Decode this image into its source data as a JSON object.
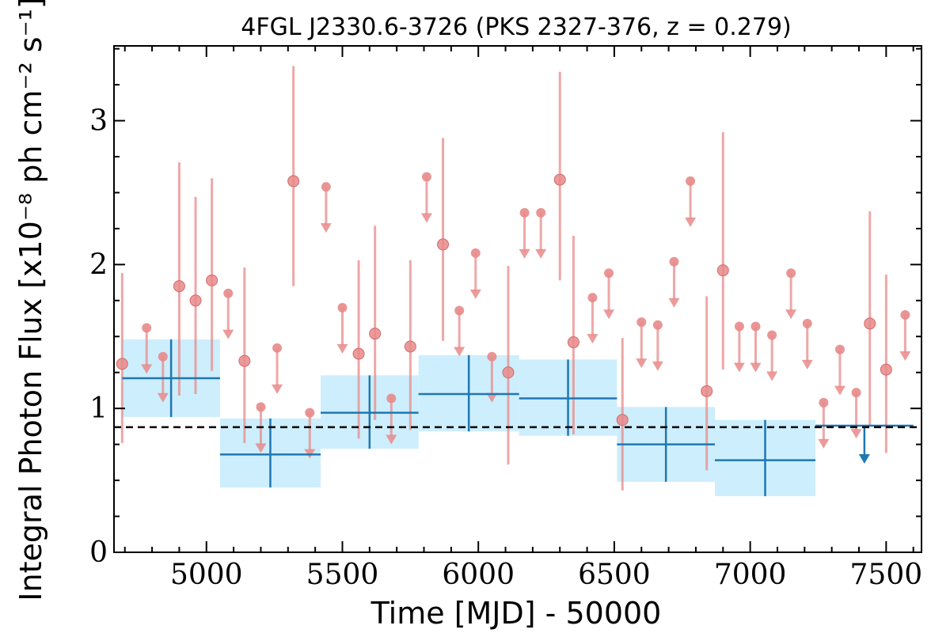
{
  "chart_data": {
    "type": "scatter",
    "title": "4FGL J2330.6-3726 (PKS 2327-376, z = 0.279)",
    "xlabel": "Time [MJD] - 50000",
    "ylabel": "Integral Photon Flux [x10⁻⁸ ph cm⁻² s⁻¹]",
    "xlim": [
      4660,
      7630
    ],
    "ylim": [
      0,
      3.52
    ],
    "xticks": [
      5000,
      5500,
      6000,
      6500,
      7000,
      7500
    ],
    "yticks": [
      0,
      1,
      2,
      3
    ],
    "mean_flux": 0.87,
    "colors": {
      "short_bin": "#e88a8a",
      "long_bin": "#1f77b4",
      "long_band": "#cdeefc",
      "mean_line": "#000000"
    },
    "series": [
      {
        "name": "",
        "kind": "detections",
        "points": [
          {
            "x": 4690,
            "y": 1.31,
            "lo": 0.76,
            "hi": 1.94
          },
          {
            "x": 4900,
            "y": 1.85,
            "lo": 1.09,
            "hi": 2.71
          },
          {
            "x": 4960,
            "y": 1.75,
            "lo": 1.1,
            "hi": 2.47
          },
          {
            "x": 5020,
            "y": 1.89,
            "lo": 1.26,
            "hi": 2.6
          },
          {
            "x": 5140,
            "y": 1.33,
            "lo": 0.76,
            "hi": 1.98
          },
          {
            "x": 5320,
            "y": 2.58,
            "lo": 1.85,
            "hi": 3.38
          },
          {
            "x": 5560,
            "y": 1.38,
            "lo": 0.79,
            "hi": 2.03
          },
          {
            "x": 5620,
            "y": 1.52,
            "lo": 0.92,
            "hi": 2.27
          },
          {
            "x": 5750,
            "y": 1.43,
            "lo": 0.85,
            "hi": 2.03
          },
          {
            "x": 5870,
            "y": 2.14,
            "lo": 1.47,
            "hi": 2.88
          },
          {
            "x": 6110,
            "y": 1.25,
            "lo": 0.61,
            "hi": 1.99
          },
          {
            "x": 6300,
            "y": 2.59,
            "lo": 1.89,
            "hi": 3.34
          },
          {
            "x": 6350,
            "y": 1.46,
            "lo": 0.82,
            "hi": 2.2
          },
          {
            "x": 6530,
            "y": 0.92,
            "lo": 0.43,
            "hi": 1.49
          },
          {
            "x": 6840,
            "y": 1.12,
            "lo": 0.57,
            "hi": 1.78
          },
          {
            "x": 6900,
            "y": 1.96,
            "lo": 1.27,
            "hi": 2.92
          },
          {
            "x": 7440,
            "y": 1.59,
            "lo": 0.88,
            "hi": 2.37
          },
          {
            "x": 7500,
            "y": 1.27,
            "lo": 0.69,
            "hi": 1.93
          }
        ]
      },
      {
        "name": "",
        "kind": "upper_limits",
        "points": [
          {
            "x": 4780,
            "y": 1.56
          },
          {
            "x": 4840,
            "y": 1.36
          },
          {
            "x": 5080,
            "y": 1.8
          },
          {
            "x": 5200,
            "y": 1.01
          },
          {
            "x": 5260,
            "y": 1.42
          },
          {
            "x": 5380,
            "y": 0.97
          },
          {
            "x": 5440,
            "y": 2.54
          },
          {
            "x": 5500,
            "y": 1.7
          },
          {
            "x": 5680,
            "y": 1.07
          },
          {
            "x": 5810,
            "y": 2.61
          },
          {
            "x": 5930,
            "y": 1.68
          },
          {
            "x": 5990,
            "y": 2.08
          },
          {
            "x": 6050,
            "y": 1.36
          },
          {
            "x": 6170,
            "y": 2.36
          },
          {
            "x": 6230,
            "y": 2.36
          },
          {
            "x": 6420,
            "y": 1.77
          },
          {
            "x": 6480,
            "y": 1.94
          },
          {
            "x": 6600,
            "y": 1.6
          },
          {
            "x": 6660,
            "y": 1.58
          },
          {
            "x": 6720,
            "y": 2.02
          },
          {
            "x": 6780,
            "y": 2.58
          },
          {
            "x": 6960,
            "y": 1.57
          },
          {
            "x": 7020,
            "y": 1.57
          },
          {
            "x": 7080,
            "y": 1.51
          },
          {
            "x": 7150,
            "y": 1.94
          },
          {
            "x": 7210,
            "y": 1.59
          },
          {
            "x": 7270,
            "y": 1.04
          },
          {
            "x": 7330,
            "y": 1.41
          },
          {
            "x": 7390,
            "y": 1.11
          },
          {
            "x": 7570,
            "y": 1.65
          }
        ]
      },
      {
        "name": "",
        "kind": "long_bins",
        "bins": [
          {
            "x0": 4690,
            "x1": 5050,
            "y": 1.21,
            "lo": 0.94,
            "hi": 1.48,
            "band_lo": 0.94,
            "band_hi": 1.48
          },
          {
            "x0": 5050,
            "x1": 5420,
            "y": 0.68,
            "lo": 0.45,
            "hi": 0.93,
            "band_lo": 0.45,
            "band_hi": 0.93
          },
          {
            "x0": 5420,
            "x1": 5780,
            "y": 0.97,
            "lo": 0.72,
            "hi": 1.23,
            "band_lo": 0.72,
            "band_hi": 1.23
          },
          {
            "x0": 5780,
            "x1": 6150,
            "y": 1.1,
            "lo": 0.84,
            "hi": 1.37,
            "band_lo": 0.84,
            "band_hi": 1.37
          },
          {
            "x0": 6150,
            "x1": 6510,
            "y": 1.07,
            "lo": 0.81,
            "hi": 1.34,
            "band_lo": 0.81,
            "band_hi": 1.34
          },
          {
            "x0": 6510,
            "x1": 6870,
            "y": 0.75,
            "lo": 0.49,
            "hi": 1.01,
            "band_lo": 0.49,
            "band_hi": 1.01
          },
          {
            "x0": 6870,
            "x1": 7240,
            "y": 0.64,
            "lo": 0.39,
            "hi": 0.92,
            "band_lo": 0.39,
            "band_hi": 0.92
          }
        ]
      },
      {
        "name": "",
        "kind": "long_bin_upper_limit",
        "bins": [
          {
            "x0": 7240,
            "x1": 7600,
            "y": 0.88
          }
        ]
      }
    ]
  }
}
